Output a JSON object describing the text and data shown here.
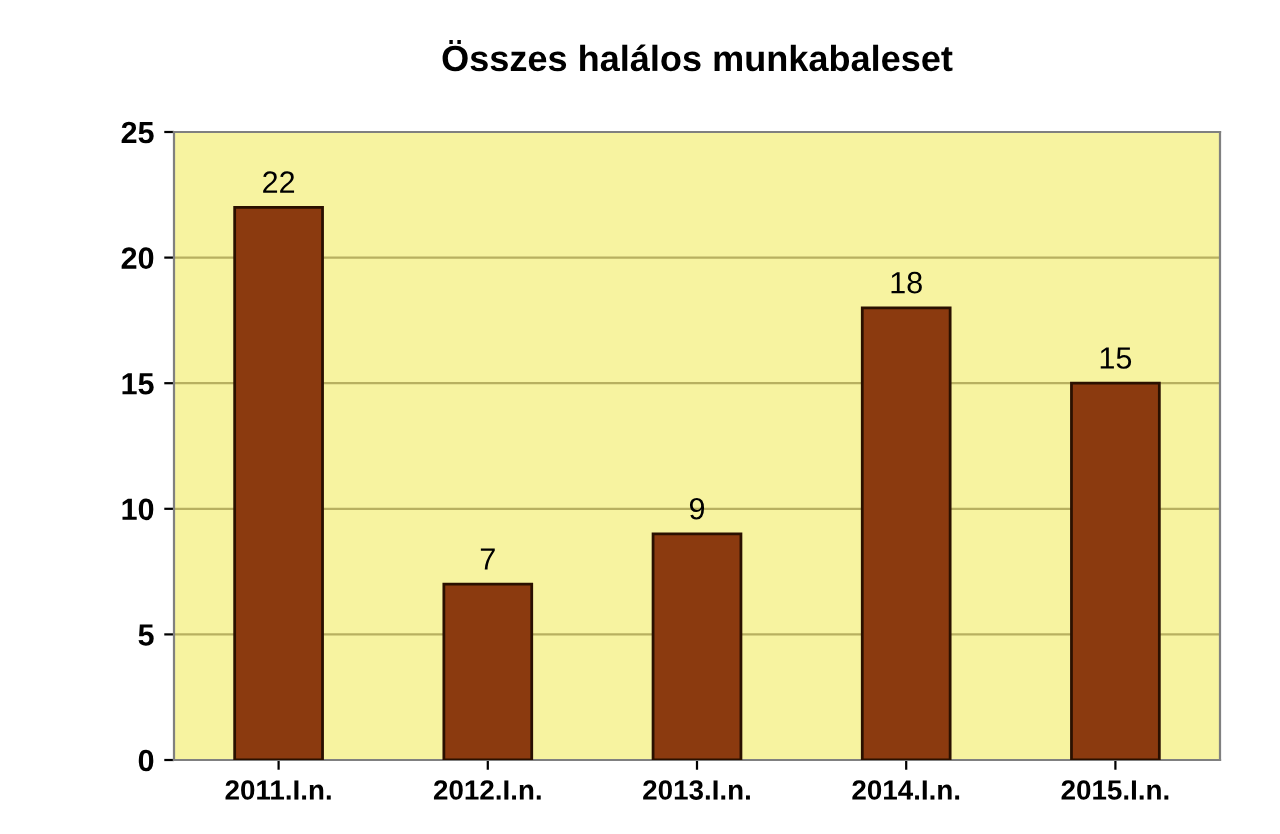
{
  "chart_data": {
    "type": "bar",
    "title": "Összes halálos munkabaleset",
    "categories": [
      "2011.I.n.",
      "2012.I.n.",
      "2013.I.n.",
      "2014.I.n.",
      "2015.I.n."
    ],
    "values": [
      22,
      7,
      9,
      18,
      15
    ],
    "color": "#8b3a0f",
    "ylim": [
      0,
      25
    ],
    "yticks": [
      0,
      5,
      10,
      15,
      20,
      25
    ],
    "grid": "y",
    "data_labels": true
  }
}
